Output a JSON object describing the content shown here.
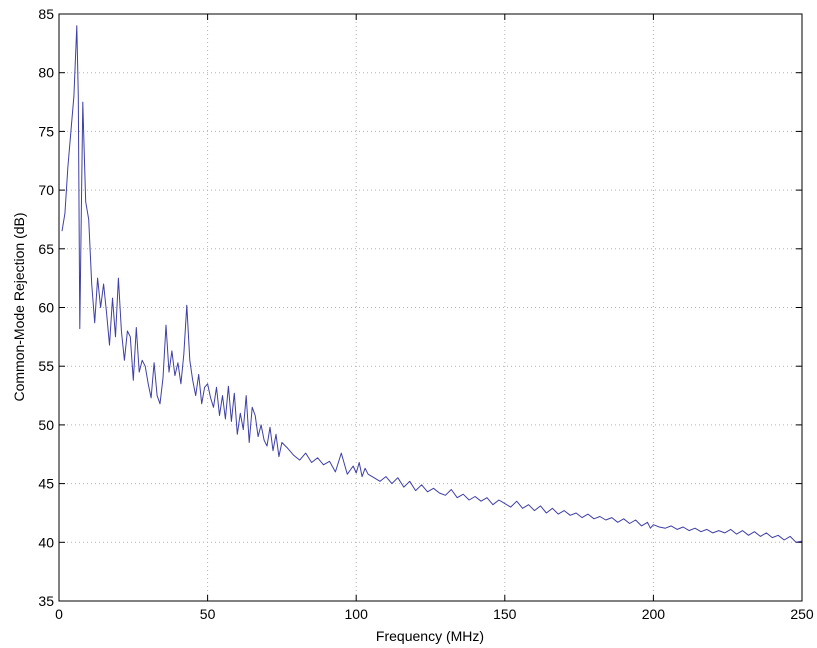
{
  "chart_data": {
    "type": "line",
    "title": "",
    "xlabel": "Frequency (MHz)",
    "ylabel": "Common-Mode Rejection (dB)",
    "xlim": [
      0,
      250
    ],
    "ylim": [
      35,
      85
    ],
    "xticks": [
      0,
      50,
      100,
      150,
      200,
      250
    ],
    "yticks": [
      35,
      40,
      45,
      50,
      55,
      60,
      65,
      70,
      75,
      80,
      85
    ],
    "grid": true,
    "line_color": "#3f3fa6",
    "series": [
      {
        "x": [
          1,
          2,
          3,
          4,
          5,
          6,
          6.5,
          7,
          7.5,
          8,
          8.5,
          9,
          10,
          11,
          12,
          13,
          14,
          15,
          16,
          17,
          18,
          19,
          20,
          21,
          22,
          23,
          24,
          25,
          26,
          27,
          28,
          29,
          30,
          31,
          32,
          33,
          34,
          35,
          36,
          37,
          38,
          39,
          40,
          41,
          42,
          43,
          44,
          45,
          46,
          47,
          48,
          49,
          50,
          51,
          52,
          53,
          54,
          55,
          56,
          57,
          58,
          59,
          60,
          61,
          62,
          63,
          64,
          65,
          66,
          67,
          68,
          69,
          70,
          71,
          72,
          73,
          74,
          75,
          77,
          79,
          81,
          83,
          85,
          87,
          89,
          91,
          93,
          95,
          97,
          99,
          100,
          101,
          102,
          103,
          104,
          106,
          108,
          110,
          112,
          114,
          116,
          118,
          120,
          122,
          124,
          126,
          128,
          130,
          132,
          134,
          136,
          138,
          140,
          142,
          144,
          146,
          148,
          150,
          152,
          154,
          156,
          158,
          160,
          162,
          164,
          166,
          168,
          170,
          172,
          174,
          176,
          178,
          180,
          182,
          184,
          186,
          188,
          190,
          192,
          194,
          196,
          198,
          199,
          200,
          202,
          204,
          206,
          208,
          210,
          212,
          214,
          216,
          218,
          220,
          222,
          224,
          226,
          228,
          230,
          232,
          234,
          236,
          238,
          240,
          242,
          244,
          246,
          248,
          250
        ],
        "y": [
          66.5,
          68,
          72,
          75,
          78,
          84,
          78,
          58.2,
          68,
          77.5,
          73,
          69,
          67.5,
          62,
          58.7,
          62.5,
          60,
          62,
          59.5,
          56.8,
          60.8,
          57.5,
          62.5,
          58,
          55.5,
          58,
          57.5,
          53.8,
          58.3,
          54.5,
          55.5,
          55,
          53.5,
          52.3,
          55.3,
          52.5,
          51.8,
          54,
          58.5,
          54.5,
          56.3,
          54.2,
          55.3,
          53.5,
          56,
          60.2,
          55.5,
          53.8,
          52.5,
          54.3,
          51.8,
          53.2,
          53.5,
          52.3,
          51.5,
          53.2,
          50.8,
          52.5,
          50.5,
          53.3,
          50.3,
          52.7,
          49.2,
          51,
          49.6,
          52.5,
          48.5,
          51.5,
          50.8,
          49,
          50,
          48.7,
          48.2,
          49.8,
          47.8,
          49.2,
          47.3,
          48.5,
          48,
          47.4,
          47,
          47.6,
          46.8,
          47.2,
          46.6,
          46.9,
          46,
          47.6,
          45.8,
          46.5,
          45.9,
          46.8,
          45.6,
          46.3,
          45.8,
          45.5,
          45.2,
          45.6,
          45,
          45.5,
          44.7,
          45.2,
          44.4,
          44.9,
          44.3,
          44.6,
          44.2,
          44,
          44.5,
          43.8,
          44.1,
          43.6,
          43.9,
          43.5,
          43.8,
          43.2,
          43.6,
          43.3,
          43,
          43.5,
          42.9,
          43.2,
          42.7,
          43.1,
          42.5,
          42.9,
          42.4,
          42.7,
          42.3,
          42.5,
          42.1,
          42.4,
          42,
          42.2,
          41.9,
          42.1,
          41.7,
          42,
          41.6,
          41.9,
          41.4,
          41.7,
          41.2,
          41.5,
          41.3,
          41.2,
          41.4,
          41.1,
          41.3,
          41,
          41.2,
          40.9,
          41.1,
          40.8,
          41,
          40.8,
          41.1,
          40.7,
          41,
          40.6,
          40.9,
          40.5,
          40.8,
          40.4,
          40.6,
          40.2,
          40.5,
          40,
          40.1
        ]
      }
    ]
  }
}
